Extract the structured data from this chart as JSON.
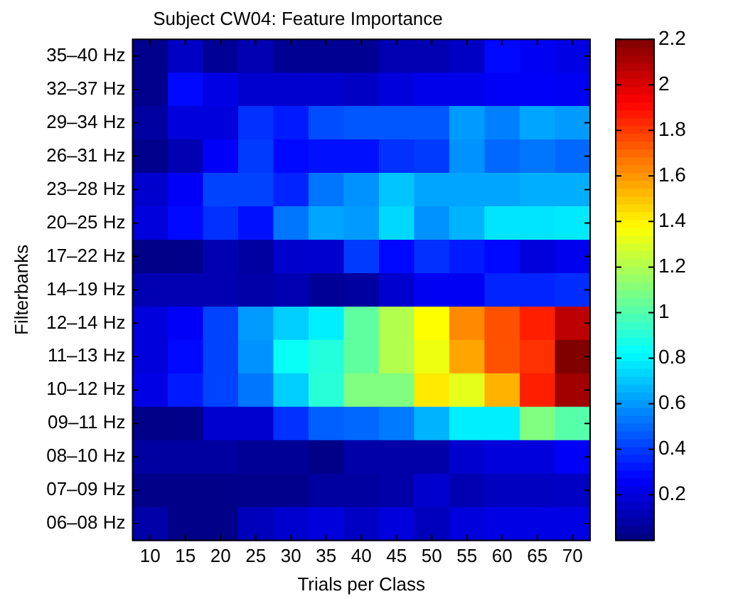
{
  "chart_data": {
    "type": "heatmap",
    "title": "Subject CW04: Feature Importance",
    "xlabel": "Trials per Class",
    "ylabel": "Filterbanks",
    "categories": [
      "10",
      "15",
      "20",
      "25",
      "30",
      "35",
      "40",
      "45",
      "50",
      "55",
      "60",
      "65",
      "70"
    ],
    "y_categories": [
      "35–40 Hz",
      "32–37 Hz",
      "29–34 Hz",
      "26–31 Hz",
      "23–28 Hz",
      "20–25 Hz",
      "17–22 Hz",
      "14–19 Hz",
      "12–14 Hz",
      "11–13 Hz",
      "10–12 Hz",
      "09–11 Hz",
      "08–10 Hz",
      "07–09 Hz",
      "06–08 Hz"
    ],
    "cells": [
      [
        0.03,
        0.15,
        0.05,
        0.11,
        0.04,
        0.04,
        0.04,
        0.11,
        0.11,
        0.15,
        0.29,
        0.25,
        0.22
      ],
      [
        0.03,
        0.29,
        0.22,
        0.17,
        0.17,
        0.17,
        0.15,
        0.2,
        0.23,
        0.23,
        0.26,
        0.26,
        0.25
      ],
      [
        0.07,
        0.2,
        0.2,
        0.38,
        0.33,
        0.44,
        0.46,
        0.46,
        0.46,
        0.61,
        0.55,
        0.63,
        0.61
      ],
      [
        0.03,
        0.11,
        0.26,
        0.4,
        0.29,
        0.31,
        0.31,
        0.38,
        0.4,
        0.59,
        0.5,
        0.53,
        0.5
      ],
      [
        0.17,
        0.26,
        0.42,
        0.42,
        0.35,
        0.53,
        0.59,
        0.7,
        0.63,
        0.63,
        0.63,
        0.65,
        0.65
      ],
      [
        0.2,
        0.29,
        0.38,
        0.31,
        0.53,
        0.63,
        0.61,
        0.74,
        0.59,
        0.66,
        0.77,
        0.77,
        0.78
      ],
      [
        0.02,
        0.02,
        0.11,
        0.07,
        0.17,
        0.17,
        0.4,
        0.29,
        0.38,
        0.33,
        0.29,
        0.2,
        0.24
      ],
      [
        0.11,
        0.11,
        0.11,
        0.09,
        0.11,
        0.05,
        0.07,
        0.17,
        0.25,
        0.25,
        0.35,
        0.35,
        0.37
      ],
      [
        0.2,
        0.26,
        0.42,
        0.61,
        0.72,
        0.79,
        1.03,
        1.21,
        1.38,
        1.63,
        1.75,
        1.86,
        2.07
      ],
      [
        0.2,
        0.29,
        0.42,
        0.59,
        0.84,
        0.9,
        1.03,
        1.21,
        1.34,
        1.57,
        1.75,
        1.82,
        2.2
      ],
      [
        0.22,
        0.33,
        0.42,
        0.53,
        0.72,
        0.91,
        1.1,
        1.1,
        1.42,
        1.32,
        1.54,
        1.86,
        2.13
      ],
      [
        0.02,
        0.02,
        0.17,
        0.17,
        0.38,
        0.48,
        0.5,
        0.54,
        0.66,
        0.79,
        0.79,
        1.1,
        1.01
      ],
      [
        0.07,
        0.07,
        0.07,
        0.05,
        0.05,
        0.02,
        0.09,
        0.09,
        0.09,
        0.17,
        0.2,
        0.2,
        0.26
      ],
      [
        0.02,
        0.02,
        0.02,
        0.03,
        0.03,
        0.07,
        0.07,
        0.09,
        0.17,
        0.11,
        0.14,
        0.14,
        0.15
      ],
      [
        0.09,
        0.02,
        0.02,
        0.13,
        0.17,
        0.2,
        0.15,
        0.2,
        0.13,
        0.2,
        0.22,
        0.22,
        0.22
      ]
    ],
    "clim": [
      0,
      2.2
    ],
    "cticks": [
      0.2,
      0.4,
      0.6,
      0.8,
      1,
      1.2,
      1.4,
      1.6,
      1.8,
      2,
      2.2
    ]
  }
}
